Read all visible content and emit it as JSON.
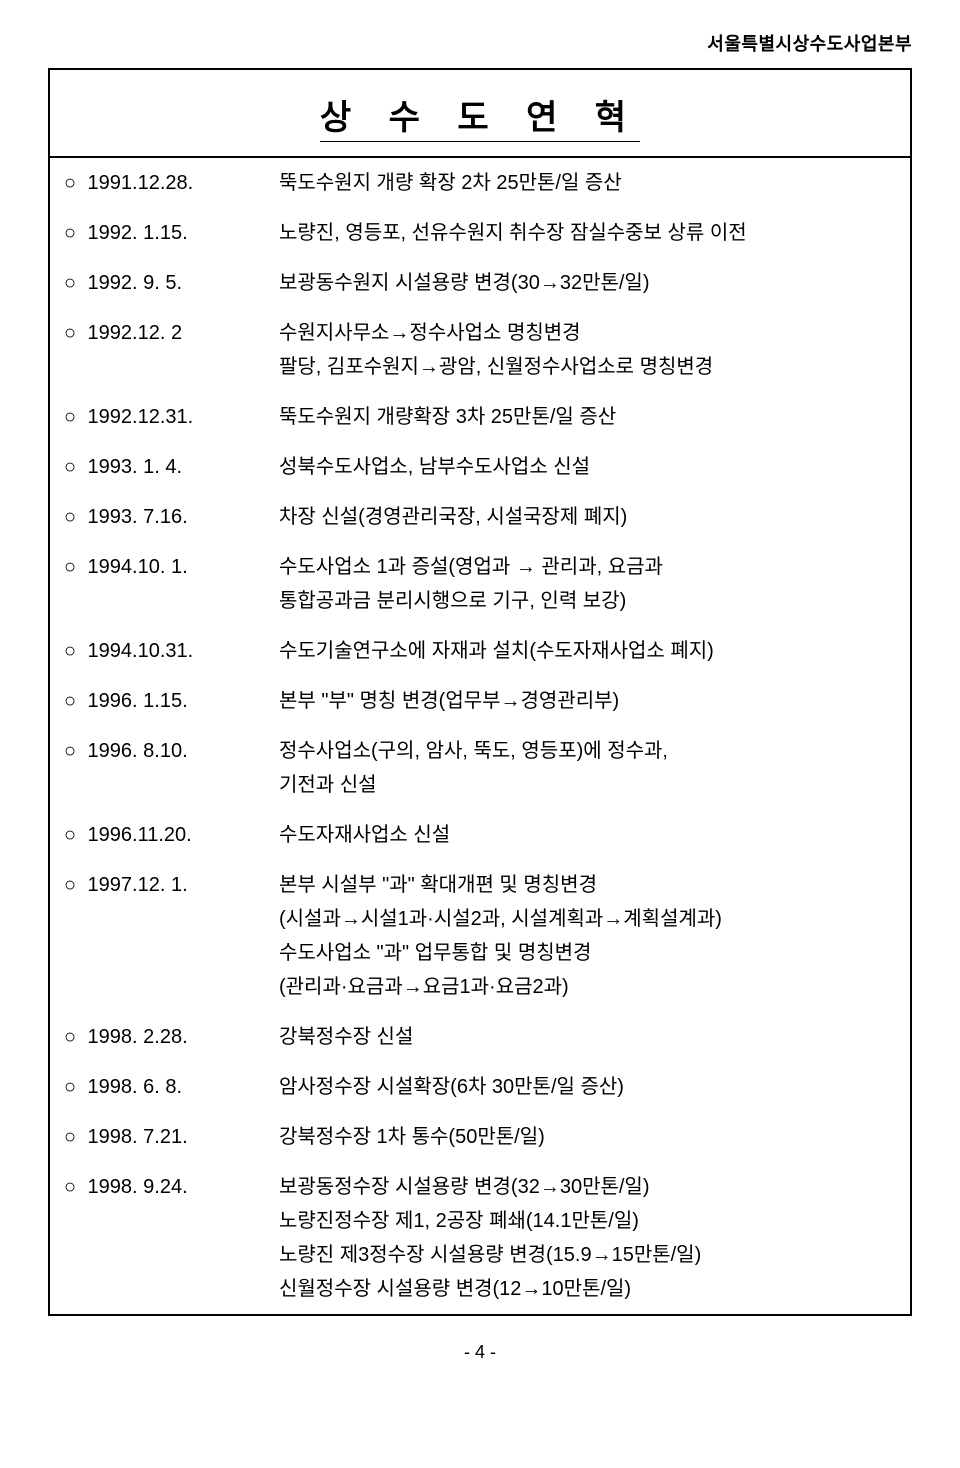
{
  "header": "서울특별시상수도사업본부",
  "title": "상 수 도   연 혁",
  "bullet_char": "○",
  "rows": [
    {
      "date": "1991.12.28.",
      "desc": [
        "뚝도수원지 개량 확장 2차 25만톤/일 증산"
      ]
    },
    {
      "date": "1992. 1.15.",
      "desc": [
        "노량진, 영등포, 선유수원지 취수장 잠실수중보 상류 이전"
      ]
    },
    {
      "date": "1992. 9. 5.",
      "desc": [
        "보광동수원지 시설용량 변경(30→32만톤/일)"
      ]
    },
    {
      "date": "1992.12. 2",
      "desc": [
        "수원지사무소→정수사업소 명칭변경",
        "팔당, 김포수원지→광암, 신월정수사업소로 명칭변경"
      ]
    },
    {
      "date": "1992.12.31.",
      "desc": [
        "뚝도수원지 개량확장 3차 25만톤/일 증산"
      ]
    },
    {
      "date": "1993. 1. 4.",
      "desc": [
        "성북수도사업소, 남부수도사업소 신설"
      ]
    },
    {
      "date": "1993. 7.16.",
      "desc": [
        "차장 신설(경영관리국장, 시설국장제 폐지)"
      ]
    },
    {
      "date": "1994.10. 1.",
      "desc": [
        "수도사업소 1과 증설(영업과 → 관리과, 요금과",
        "통합공과금 분리시행으로 기구, 인력 보강)"
      ]
    },
    {
      "date": "1994.10.31.",
      "desc": [
        "수도기술연구소에 자재과 설치(수도자재사업소 폐지)"
      ]
    },
    {
      "date": "1996. 1.15.",
      "desc": [
        "본부 \"부\" 명칭 변경(업무부→경영관리부)"
      ]
    },
    {
      "date": "1996. 8.10.",
      "desc": [
        "정수사업소(구의, 암사, 뚝도, 영등포)에 정수과,",
        "기전과 신설"
      ]
    },
    {
      "date": "1996.11.20.",
      "desc": [
        "수도자재사업소 신설"
      ]
    },
    {
      "date": "1997.12. 1.",
      "desc": [
        "본부 시설부 \"과\" 확대개편 및 명칭변경",
        "(시설과→시설1과·시설2과, 시설계획과→계획설계과)",
        "수도사업소 \"과\" 업무통합 및 명칭변경",
        "(관리과·요금과→요금1과·요금2과)"
      ]
    },
    {
      "date": "1998. 2.28.",
      "desc": [
        "강북정수장 신설"
      ]
    },
    {
      "date": "1998. 6. 8.",
      "desc": [
        "암사정수장 시설확장(6차 30만톤/일 증산)"
      ]
    },
    {
      "date": "1998. 7.21.",
      "desc": [
        "강북정수장 1차 통수(50만톤/일)"
      ]
    },
    {
      "date": "1998. 9.24.",
      "desc": [
        "보광동정수장 시설용량 변경(32→30만톤/일)",
        "노량진정수장 제1, 2공장 폐쇄(14.1만톤/일)",
        "노량진 제3정수장 시설용량 변경(15.9→15만톤/일)",
        "신월정수장 시설용량 변경(12→10만톤/일)"
      ]
    }
  ],
  "page_number": "- 4 -",
  "colors": {
    "text": "#000000",
    "background": "#ffffff",
    "border": "#000000"
  },
  "typography": {
    "base_fontsize": 20,
    "title_fontsize": 34,
    "header_fontsize": 18,
    "line_height": 1.7
  }
}
